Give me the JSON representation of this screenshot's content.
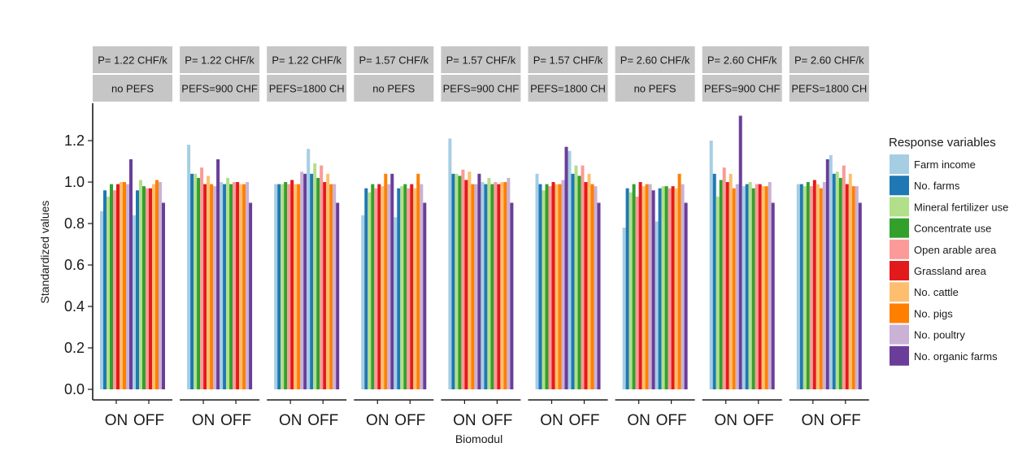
{
  "chart_data": {
    "type": "bar",
    "ylabel": "Standardized values",
    "xlabel": "Biomodul",
    "yticks": [
      "0.0",
      "0.2",
      "0.4",
      "0.6",
      "0.8",
      "1.0",
      "1.2"
    ],
    "ylim": [
      0,
      1.36
    ],
    "categories": [
      "ON",
      "OFF"
    ],
    "grid": false,
    "legend_position": "right",
    "legend_title": "Response variables",
    "series": [
      {
        "name": "Farm income",
        "color": "#a6cee3"
      },
      {
        "name": "No. farms",
        "color": "#1f78b4"
      },
      {
        "name": "Mineral fertilizer use",
        "color": "#b2df8a"
      },
      {
        "name": "Concentrate use",
        "color": "#33a02c"
      },
      {
        "name": "Open arable area",
        "color": "#fb9a99"
      },
      {
        "name": "Grassland area",
        "color": "#e31a1c"
      },
      {
        "name": "No. cattle",
        "color": "#fdbf6f"
      },
      {
        "name": "No. pigs",
        "color": "#ff7f00"
      },
      {
        "name": "No. poultry",
        "color": "#cab2d6"
      },
      {
        "name": "No. organic farms",
        "color": "#6a3d9a"
      }
    ],
    "facets": [
      {
        "strip1": "P= 1.22 CHF/k",
        "strip2": "no PEFS",
        "ON": [
          0.86,
          0.96,
          0.93,
          0.99,
          0.96,
          0.99,
          1.0,
          1.0,
          0.99,
          1.11
        ],
        "OFF": [
          0.84,
          0.96,
          1.01,
          0.98,
          0.97,
          0.97,
          0.99,
          1.01,
          1.0,
          0.9
        ]
      },
      {
        "strip1": "P= 1.22 CHF/k",
        "strip2": "PEFS=900 CHF",
        "ON": [
          1.18,
          1.04,
          1.04,
          1.02,
          1.07,
          0.99,
          1.03,
          0.99,
          0.98,
          1.11
        ],
        "OFF": [
          1.0,
          0.99,
          1.02,
          0.99,
          1.0,
          1.0,
          0.99,
          0.99,
          1.0,
          0.9
        ]
      },
      {
        "strip1": "P= 1.22 CHF/k",
        "strip2": "PEFS=1800 CH",
        "ON": [
          0.99,
          0.99,
          0.99,
          1.0,
          0.99,
          1.01,
          0.99,
          0.99,
          1.05,
          1.04
        ],
        "OFF": [
          1.16,
          1.04,
          1.09,
          1.02,
          1.08,
          1.0,
          1.04,
          0.99,
          0.99,
          0.9
        ]
      },
      {
        "strip1": "P= 1.57 CHF/k",
        "strip2": "no PEFS",
        "ON": [
          0.84,
          0.97,
          0.95,
          0.99,
          0.97,
          0.99,
          0.98,
          1.04,
          0.99,
          1.04
        ],
        "OFF": [
          0.83,
          0.97,
          0.98,
          0.99,
          0.97,
          0.99,
          0.97,
          1.04,
          0.99,
          0.9
        ]
      },
      {
        "strip1": "P= 1.57 CHF/k",
        "strip2": "PEFS=900 CHF",
        "ON": [
          1.21,
          1.04,
          1.04,
          1.03,
          1.06,
          1.01,
          1.05,
          0.99,
          0.99,
          1.04
        ],
        "OFF": [
          1.0,
          0.99,
          1.02,
          0.99,
          1.0,
          0.99,
          1.0,
          1.0,
          1.02,
          0.9
        ]
      },
      {
        "strip1": "P= 1.57 CHF/k",
        "strip2": "PEFS=1800 CH",
        "ON": [
          1.04,
          0.99,
          0.96,
          0.99,
          0.98,
          1.0,
          0.99,
          0.99,
          1.01,
          1.17
        ],
        "OFF": [
          1.15,
          1.04,
          1.08,
          1.03,
          1.08,
          1.0,
          1.04,
          0.99,
          0.98,
          0.9
        ]
      },
      {
        "strip1": "P= 2.60 CHF/k",
        "strip2": "no PEFS",
        "ON": [
          0.78,
          0.97,
          0.95,
          0.99,
          0.93,
          1.0,
          0.98,
          0.99,
          0.99,
          0.96
        ],
        "OFF": [
          0.81,
          0.97,
          0.98,
          0.98,
          0.97,
          0.98,
          0.97,
          1.04,
          0.99,
          0.9
        ]
      },
      {
        "strip1": "P= 2.60 CHF/k",
        "strip2": "PEFS=900 CHF",
        "ON": [
          1.2,
          1.04,
          0.93,
          1.01,
          1.07,
          1.0,
          1.04,
          0.97,
          0.99,
          1.32
        ],
        "OFF": [
          0.98,
          0.99,
          1.0,
          0.97,
          0.99,
          0.99,
          0.98,
          0.98,
          1.0,
          0.9
        ]
      },
      {
        "strip1": "P= 2.60 CHF/k",
        "strip2": "PEFS=1800 CH",
        "ON": [
          0.99,
          0.99,
          0.98,
          1.0,
          0.98,
          1.01,
          0.99,
          0.97,
          1.0,
          1.11
        ],
        "OFF": [
          1.13,
          1.04,
          1.05,
          1.02,
          1.08,
          0.99,
          1.04,
          0.98,
          0.98,
          0.9
        ]
      }
    ]
  }
}
